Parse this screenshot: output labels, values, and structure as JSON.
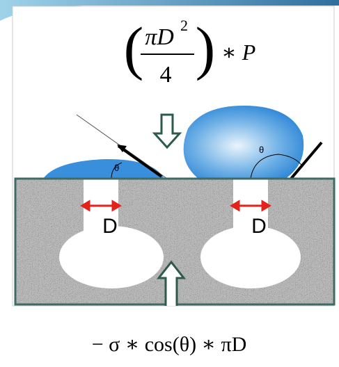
{
  "top_formula": {
    "left_paren": "(",
    "numerator": "πD",
    "exponent": "2",
    "denominator": "4",
    "right_paren": ")",
    "operator": "∗ P"
  },
  "angles": [
    "θ",
    "θ"
  ],
  "pore_labels": [
    "D",
    "D"
  ],
  "bottom_formula": "− σ ∗ cos(θ) ∗ πD"
}
